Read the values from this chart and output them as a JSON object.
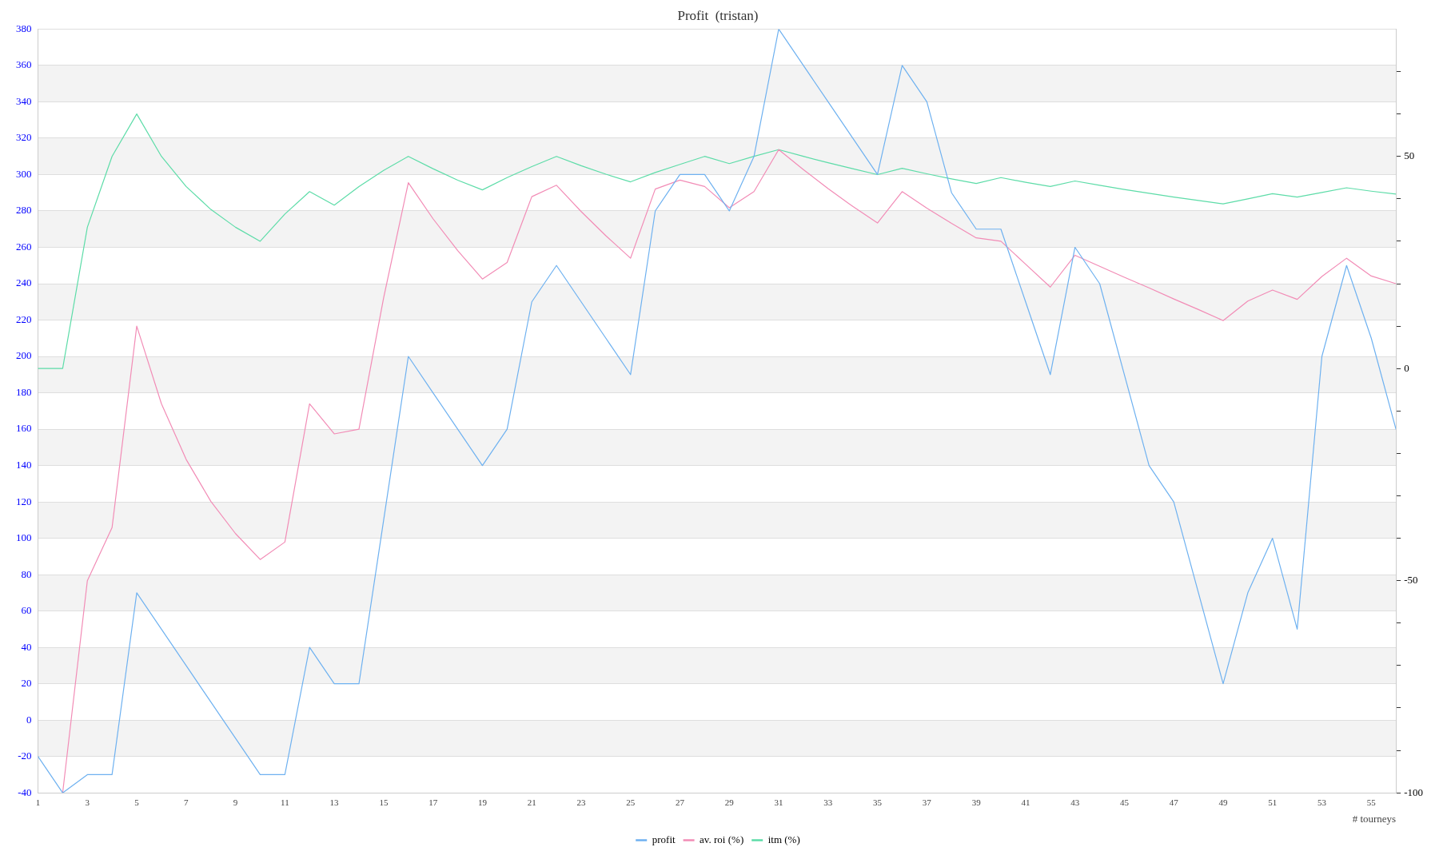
{
  "chart_data": {
    "type": "line",
    "title": "Profit  (tristan)",
    "xlabel": "# tourneys",
    "x": [
      1,
      2,
      3,
      4,
      5,
      6,
      7,
      8,
      9,
      10,
      11,
      12,
      13,
      14,
      15,
      16,
      17,
      18,
      19,
      20,
      21,
      22,
      23,
      24,
      25,
      26,
      27,
      28,
      29,
      30,
      31,
      32,
      33,
      34,
      35,
      36,
      37,
      38,
      39,
      40,
      41,
      42,
      43,
      44,
      45,
      46,
      47,
      48,
      49,
      50,
      51,
      52,
      53,
      54,
      55,
      56
    ],
    "xlim": [
      1,
      56
    ],
    "xticks": [
      1,
      3,
      5,
      7,
      9,
      11,
      13,
      15,
      17,
      19,
      21,
      23,
      25,
      27,
      29,
      31,
      33,
      35,
      37,
      39,
      41,
      43,
      45,
      47,
      49,
      51,
      53,
      55
    ],
    "series": [
      {
        "name": "profit",
        "color": "#6eb1f0",
        "values": [
          -20,
          -40,
          -30,
          -30,
          70,
          50,
          30,
          10,
          -10,
          -30,
          -30,
          40,
          20,
          20,
          110,
          200,
          180,
          160,
          140,
          160,
          230,
          250,
          230,
          210,
          190,
          280,
          300,
          300,
          280,
          310,
          380,
          360,
          340,
          320,
          300,
          360,
          340,
          290,
          270,
          270,
          230,
          190,
          260,
          240,
          190,
          140,
          120,
          70,
          20,
          70,
          100,
          50,
          200,
          250,
          210,
          160
        ]
      },
      {
        "name": "av. roi (%)",
        "color": "#f28cb6",
        "axis": "y2",
        "values": [
          null,
          -100,
          -50,
          -37.5,
          10,
          -8.3,
          -21.4,
          -31.3,
          -38.9,
          -45,
          -40.9,
          -8.3,
          -15.4,
          -14.3,
          16.7,
          43.8,
          35.3,
          27.8,
          21.1,
          25,
          40.5,
          43.2,
          37,
          31.3,
          26,
          42.3,
          44.4,
          42.9,
          37.9,
          41.7,
          51.6,
          46.9,
          42.4,
          38.2,
          34.3,
          41.7,
          37.8,
          34.2,
          30.8,
          30,
          24.6,
          19.2,
          26.7,
          24.1,
          21.5,
          19,
          16.4,
          13.9,
          11.3,
          15.9,
          18.5,
          16.3,
          21.7,
          26,
          21.8,
          20
        ]
      },
      {
        "name": "itm (%)",
        "color": "#5ddca8",
        "axis": "y2",
        "values": [
          0,
          0,
          33.3,
          50,
          60,
          50,
          42.9,
          37.5,
          33.3,
          30,
          36.4,
          41.7,
          38.5,
          42.9,
          46.7,
          50,
          47.1,
          44.4,
          42.1,
          45,
          47.6,
          50,
          47.8,
          45.8,
          44,
          46.2,
          48.1,
          50,
          48.3,
          50,
          51.6,
          50,
          48.5,
          47.1,
          45.7,
          47.2,
          45.9,
          44.7,
          43.6,
          45,
          43.9,
          42.9,
          44.2,
          43.2,
          42.2,
          41.3,
          40.4,
          39.6,
          38.8,
          40,
          41.2,
          40.4,
          41.5,
          42.6,
          41.8,
          41.1
        ]
      }
    ],
    "ylim": [
      -40,
      380
    ],
    "yticks": [
      -40,
      -20,
      0,
      20,
      40,
      60,
      80,
      100,
      120,
      140,
      160,
      180,
      200,
      220,
      240,
      260,
      280,
      300,
      320,
      340,
      360,
      380
    ],
    "y2lim": [
      -100,
      80
    ],
    "y2ticks": [
      -100,
      {
        "value": -90,
        "label": null
      },
      {
        "value": -80,
        "label": null
      },
      {
        "value": -70,
        "label": null
      },
      {
        "value": -60,
        "label": null
      },
      -50,
      {
        "value": -40,
        "label": null
      },
      {
        "value": -30,
        "label": null
      },
      {
        "value": -20,
        "label": null
      },
      {
        "value": -10,
        "label": null
      },
      0,
      {
        "value": 10,
        "label": null
      },
      {
        "value": 20,
        "label": null
      },
      {
        "value": 30,
        "label": null
      },
      {
        "value": 40,
        "label": null
      },
      50,
      {
        "value": 60,
        "label": null
      },
      {
        "value": 70,
        "label": null
      }
    ],
    "bands": [
      {
        "axis": "y",
        "from": -20,
        "to": 0,
        "color": "#f3f3f3"
      },
      {
        "axis": "y",
        "from": 20,
        "to": 40,
        "color": "#f3f3f3"
      },
      {
        "axis": "y",
        "from": 60,
        "to": 80,
        "color": "#f3f3f3"
      },
      {
        "axis": "y",
        "from": 100,
        "to": 120,
        "color": "#f3f3f3"
      },
      {
        "axis": "y",
        "from": 140,
        "to": 160,
        "color": "#f3f3f3"
      },
      {
        "axis": "y",
        "from": 180,
        "to": 200,
        "color": "#f3f3f3"
      },
      {
        "axis": "y",
        "from": 220,
        "to": 240,
        "color": "#f3f3f3"
      },
      {
        "axis": "y",
        "from": 260,
        "to": 280,
        "color": "#f3f3f3"
      },
      {
        "axis": "y",
        "from": 300,
        "to": 320,
        "color": "#f3f3f3"
      },
      {
        "axis": "y",
        "from": 340,
        "to": 360,
        "color": "#f3f3f3"
      }
    ],
    "grid": "y",
    "legend": "bottom",
    "marker": "none",
    "line_style": "solid"
  }
}
